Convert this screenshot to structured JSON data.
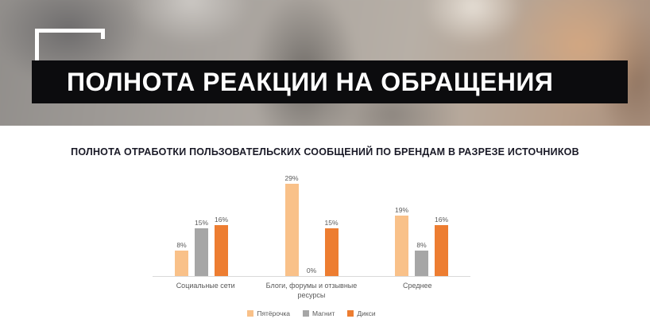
{
  "hero": {
    "title": "ПОЛНОТА РЕАКЦИИ НА ОБРАЩЕНИЯ"
  },
  "chart_data": {
    "type": "bar",
    "title": "ПОЛНОТА ОТРАБОТКИ ПОЛЬЗОВАТЕЛЬСКИХ СООБЩЕНИЙ ПО БРЕНДАМ В РАЗРЕЗЕ ИСТОЧНИКОВ",
    "categories": [
      "Социальные сети",
      "Блоги, форумы и отзывные ресурсы",
      "Среднее"
    ],
    "series": [
      {
        "name": "Пятёрочка",
        "color": "#f9c189",
        "values": [
          8,
          29,
          19
        ]
      },
      {
        "name": "Магнит",
        "color": "#a6a6a6",
        "values": [
          15,
          0,
          8
        ]
      },
      {
        "name": "Дикси",
        "color": "#ed7d31",
        "values": [
          16,
          15,
          16
        ]
      }
    ],
    "value_suffix": "%",
    "data_labels": true,
    "ylim": [
      0,
      30
    ],
    "grid": false,
    "legend_position": "bottom",
    "axis_color": "#d9d9d9"
  }
}
